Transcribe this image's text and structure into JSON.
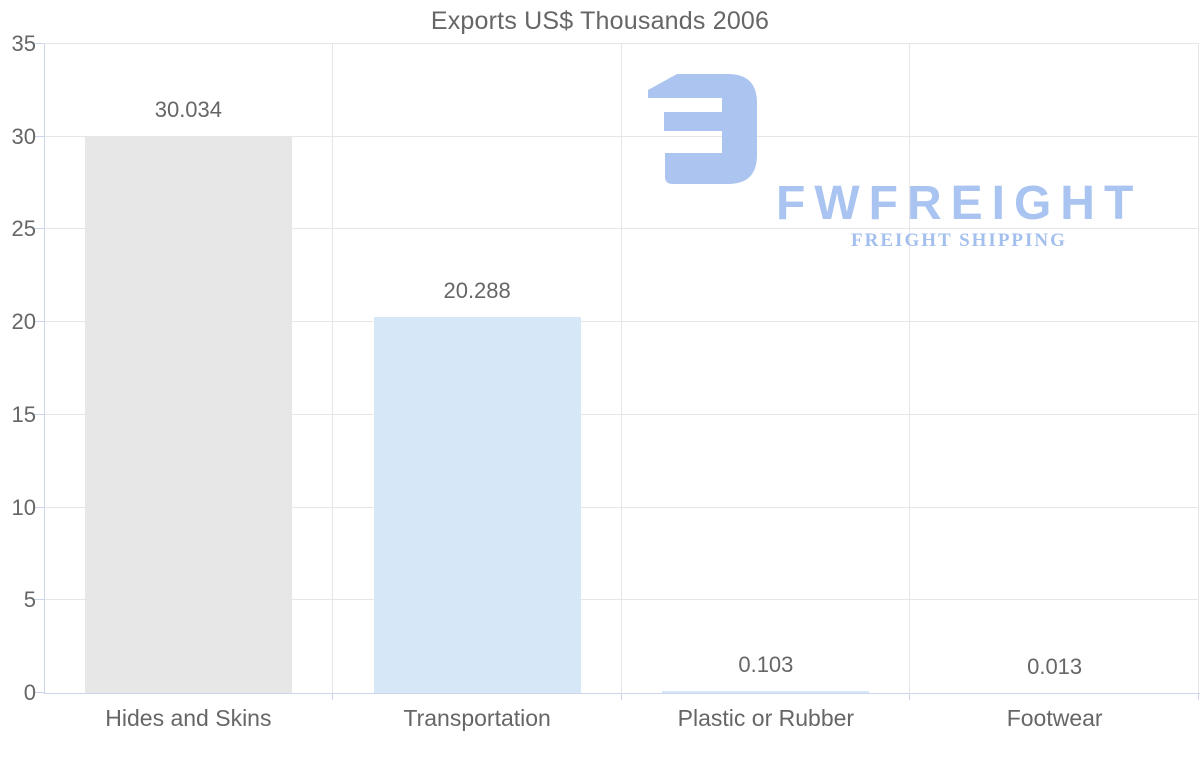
{
  "page": {
    "background": "#ffffff"
  },
  "chart_data": {
    "type": "bar",
    "title": "Exports US$ Thousands 2006",
    "categories": [
      "Hides and Skins",
      "Transportation",
      "Plastic or Rubber",
      "Footwear"
    ],
    "values": [
      30.034,
      20.288,
      0.103,
      0.013
    ],
    "value_labels": [
      "30.034",
      "20.288",
      "0.103",
      "0.013"
    ],
    "xlabel": "",
    "ylabel": "",
    "ylim": [
      0,
      35
    ],
    "yticks": [
      0,
      5,
      10,
      15,
      20,
      25,
      30,
      35
    ],
    "ytick_labels": [
      "0",
      "5",
      "10",
      "15",
      "20",
      "25",
      "30",
      "35"
    ],
    "grid": true,
    "legend": false,
    "bar_colors": [
      "#e7e7e7",
      "#d6e8f8",
      "#d6e8f8",
      "#d6e8f8"
    ],
    "grid_color": "#e6e6e6",
    "axis_color": "#ccd6eb",
    "text_color": "#666666"
  },
  "logo": {
    "wordmark": "FWFREIGHT",
    "subtitle": "FREIGHT SHIPPING",
    "glyph_color": "#abc4f0",
    "wordmark_color": "#a9c4f1",
    "subtitle_color": "#a3bfee"
  }
}
